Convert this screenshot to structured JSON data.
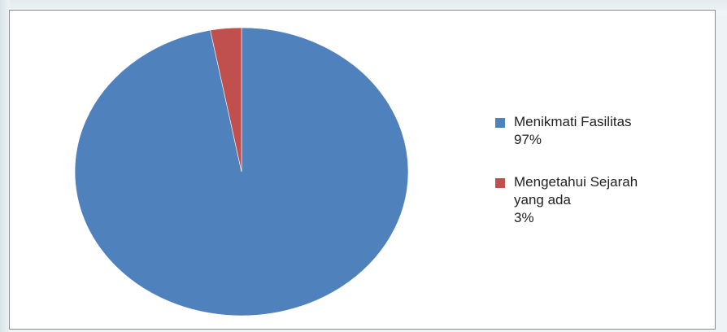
{
  "chart_data": {
    "type": "pie",
    "slices": [
      {
        "label": "Menikmati Fasilitas",
        "label_lines": [
          "Menikmati Fasilitas"
        ],
        "value": 97,
        "percent_label": "97%",
        "color": "#4f81bd"
      },
      {
        "label": "Mengetahui Sejarah yang ada",
        "label_lines": [
          "Mengetahui Sejarah",
          "yang ada"
        ],
        "value": 3,
        "percent_label": "3%",
        "color": "#c0504d"
      }
    ],
    "start": "12 o'clock",
    "direction": "clockwise",
    "legend_position": "right"
  }
}
